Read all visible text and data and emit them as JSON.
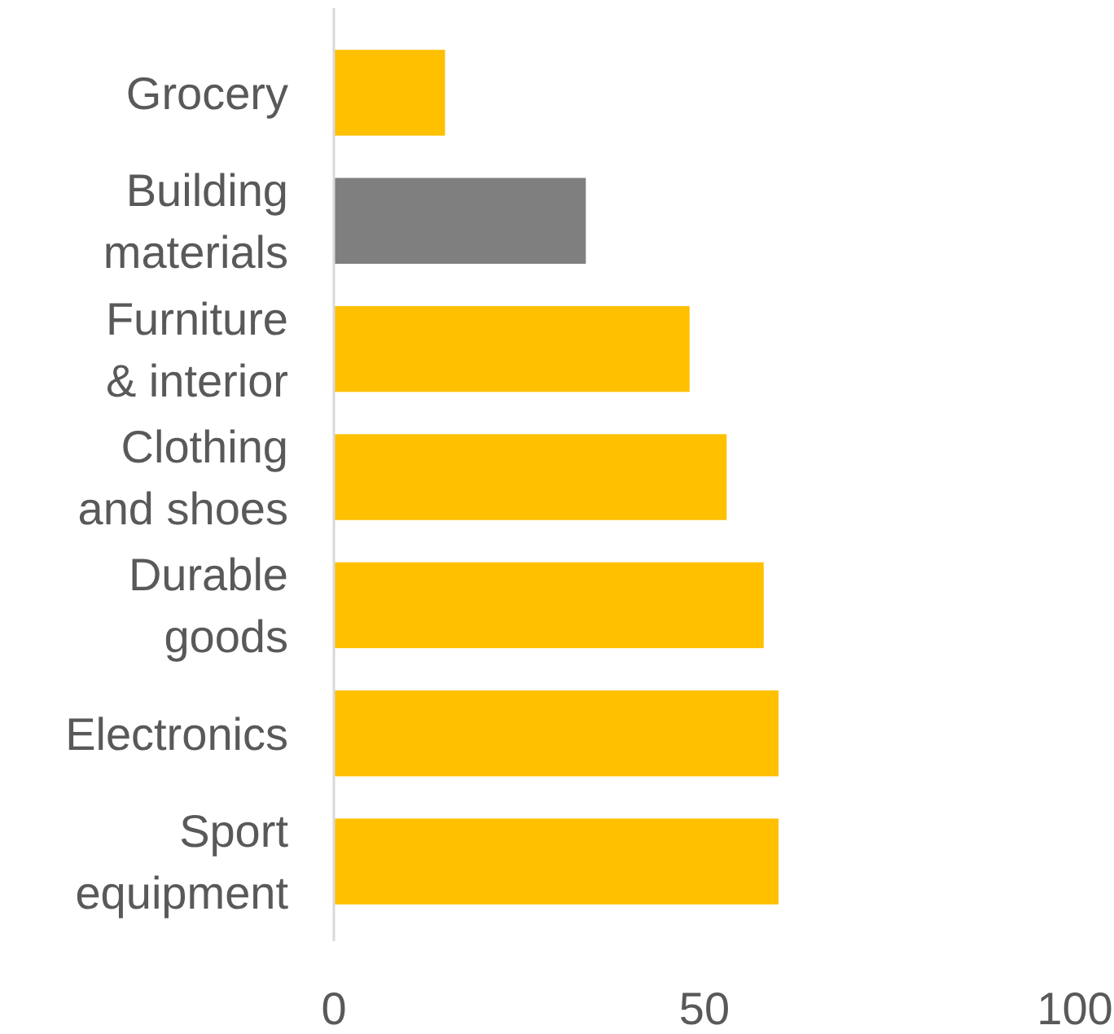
{
  "chart_data": {
    "type": "bar",
    "orientation": "horizontal",
    "categories": [
      "Grocery",
      "Building\nmaterials",
      "Furniture\n& interior",
      "Clothing\nand shoes",
      "Durable\ngoods",
      "Electronics",
      "Sport\nequipment"
    ],
    "values": [
      15,
      34,
      48,
      53,
      58,
      60,
      60
    ],
    "colors": [
      "#ffc000",
      "#7f7f7f",
      "#ffc000",
      "#ffc000",
      "#ffc000",
      "#ffc000",
      "#ffc000"
    ],
    "xlim": [
      0,
      100
    ],
    "xticks": [
      0,
      50,
      100
    ]
  }
}
